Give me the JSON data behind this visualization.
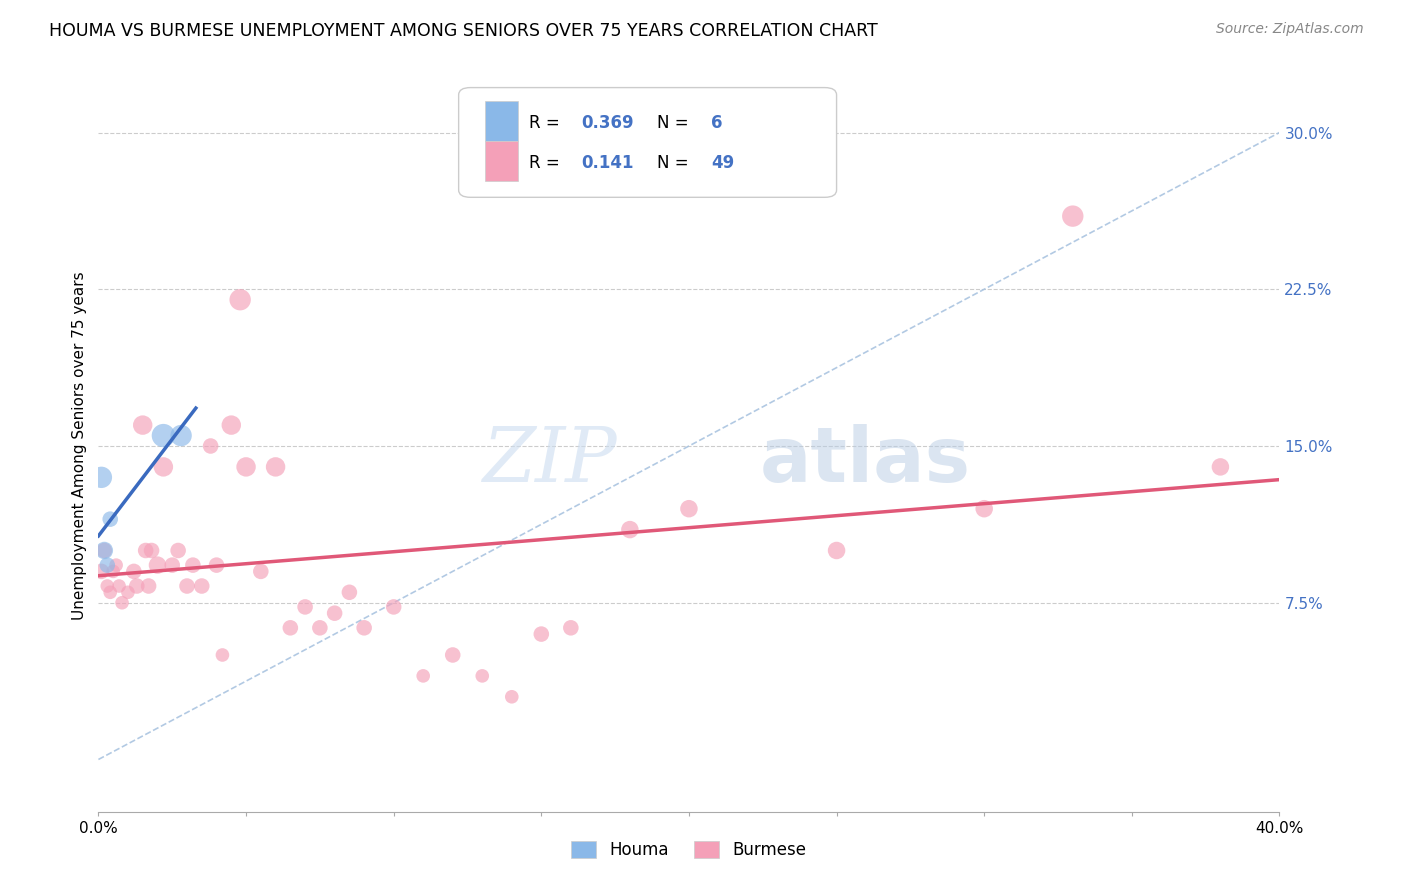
{
  "title": "HOUMA VS BURMESE UNEMPLOYMENT AMONG SENIORS OVER 75 YEARS CORRELATION CHART",
  "source": "Source: ZipAtlas.com",
  "ylabel": "Unemployment Among Seniors over 75 years",
  "xlim": [
    0.0,
    0.4
  ],
  "ylim": [
    -0.025,
    0.325
  ],
  "x_ticks": [
    0.0,
    0.05,
    0.1,
    0.15,
    0.2,
    0.25,
    0.3,
    0.35,
    0.4
  ],
  "y_ticks_right": [
    0.075,
    0.15,
    0.225,
    0.3
  ],
  "y_tick_labels_right": [
    "7.5%",
    "15.0%",
    "22.5%",
    "30.0%"
  ],
  "houma_R": "0.369",
  "houma_N": "6",
  "burmese_R": "0.141",
  "burmese_N": "49",
  "houma_color": "#8ab8e8",
  "burmese_color": "#f4a0b8",
  "houma_line_color": "#3a6abf",
  "burmese_line_color": "#e05878",
  "grid_color": "#cccccc",
  "houma_x": [
    0.001,
    0.002,
    0.003,
    0.004,
    0.022,
    0.028
  ],
  "houma_y": [
    0.135,
    0.1,
    0.093,
    0.115,
    0.155,
    0.155
  ],
  "houma_size": [
    22,
    18,
    16,
    16,
    24,
    22
  ],
  "burmese_x": [
    0.001,
    0.002,
    0.003,
    0.004,
    0.005,
    0.006,
    0.007,
    0.008,
    0.01,
    0.012,
    0.013,
    0.015,
    0.016,
    0.017,
    0.018,
    0.02,
    0.022,
    0.025,
    0.027,
    0.03,
    0.032,
    0.035,
    0.038,
    0.04,
    0.042,
    0.045,
    0.048,
    0.05,
    0.055,
    0.06,
    0.065,
    0.07,
    0.075,
    0.08,
    0.085,
    0.09,
    0.1,
    0.11,
    0.12,
    0.13,
    0.14,
    0.15,
    0.16,
    0.18,
    0.2,
    0.25,
    0.3,
    0.33,
    0.38
  ],
  "burmese_y": [
    0.09,
    0.1,
    0.083,
    0.08,
    0.09,
    0.093,
    0.083,
    0.075,
    0.08,
    0.09,
    0.083,
    0.16,
    0.1,
    0.083,
    0.1,
    0.093,
    0.14,
    0.093,
    0.1,
    0.083,
    0.093,
    0.083,
    0.15,
    0.093,
    0.05,
    0.16,
    0.22,
    0.14,
    0.09,
    0.14,
    0.063,
    0.073,
    0.063,
    0.07,
    0.08,
    0.063,
    0.073,
    0.04,
    0.05,
    0.04,
    0.03,
    0.06,
    0.063,
    0.11,
    0.12,
    0.1,
    0.12,
    0.26,
    0.14
  ],
  "burmese_size": [
    16,
    16,
    14,
    14,
    14,
    14,
    14,
    14,
    14,
    16,
    16,
    20,
    16,
    16,
    16,
    18,
    20,
    16,
    16,
    16,
    16,
    16,
    16,
    16,
    14,
    20,
    22,
    20,
    16,
    20,
    16,
    16,
    16,
    16,
    16,
    16,
    16,
    14,
    16,
    14,
    14,
    16,
    16,
    18,
    18,
    18,
    18,
    22,
    18
  ]
}
